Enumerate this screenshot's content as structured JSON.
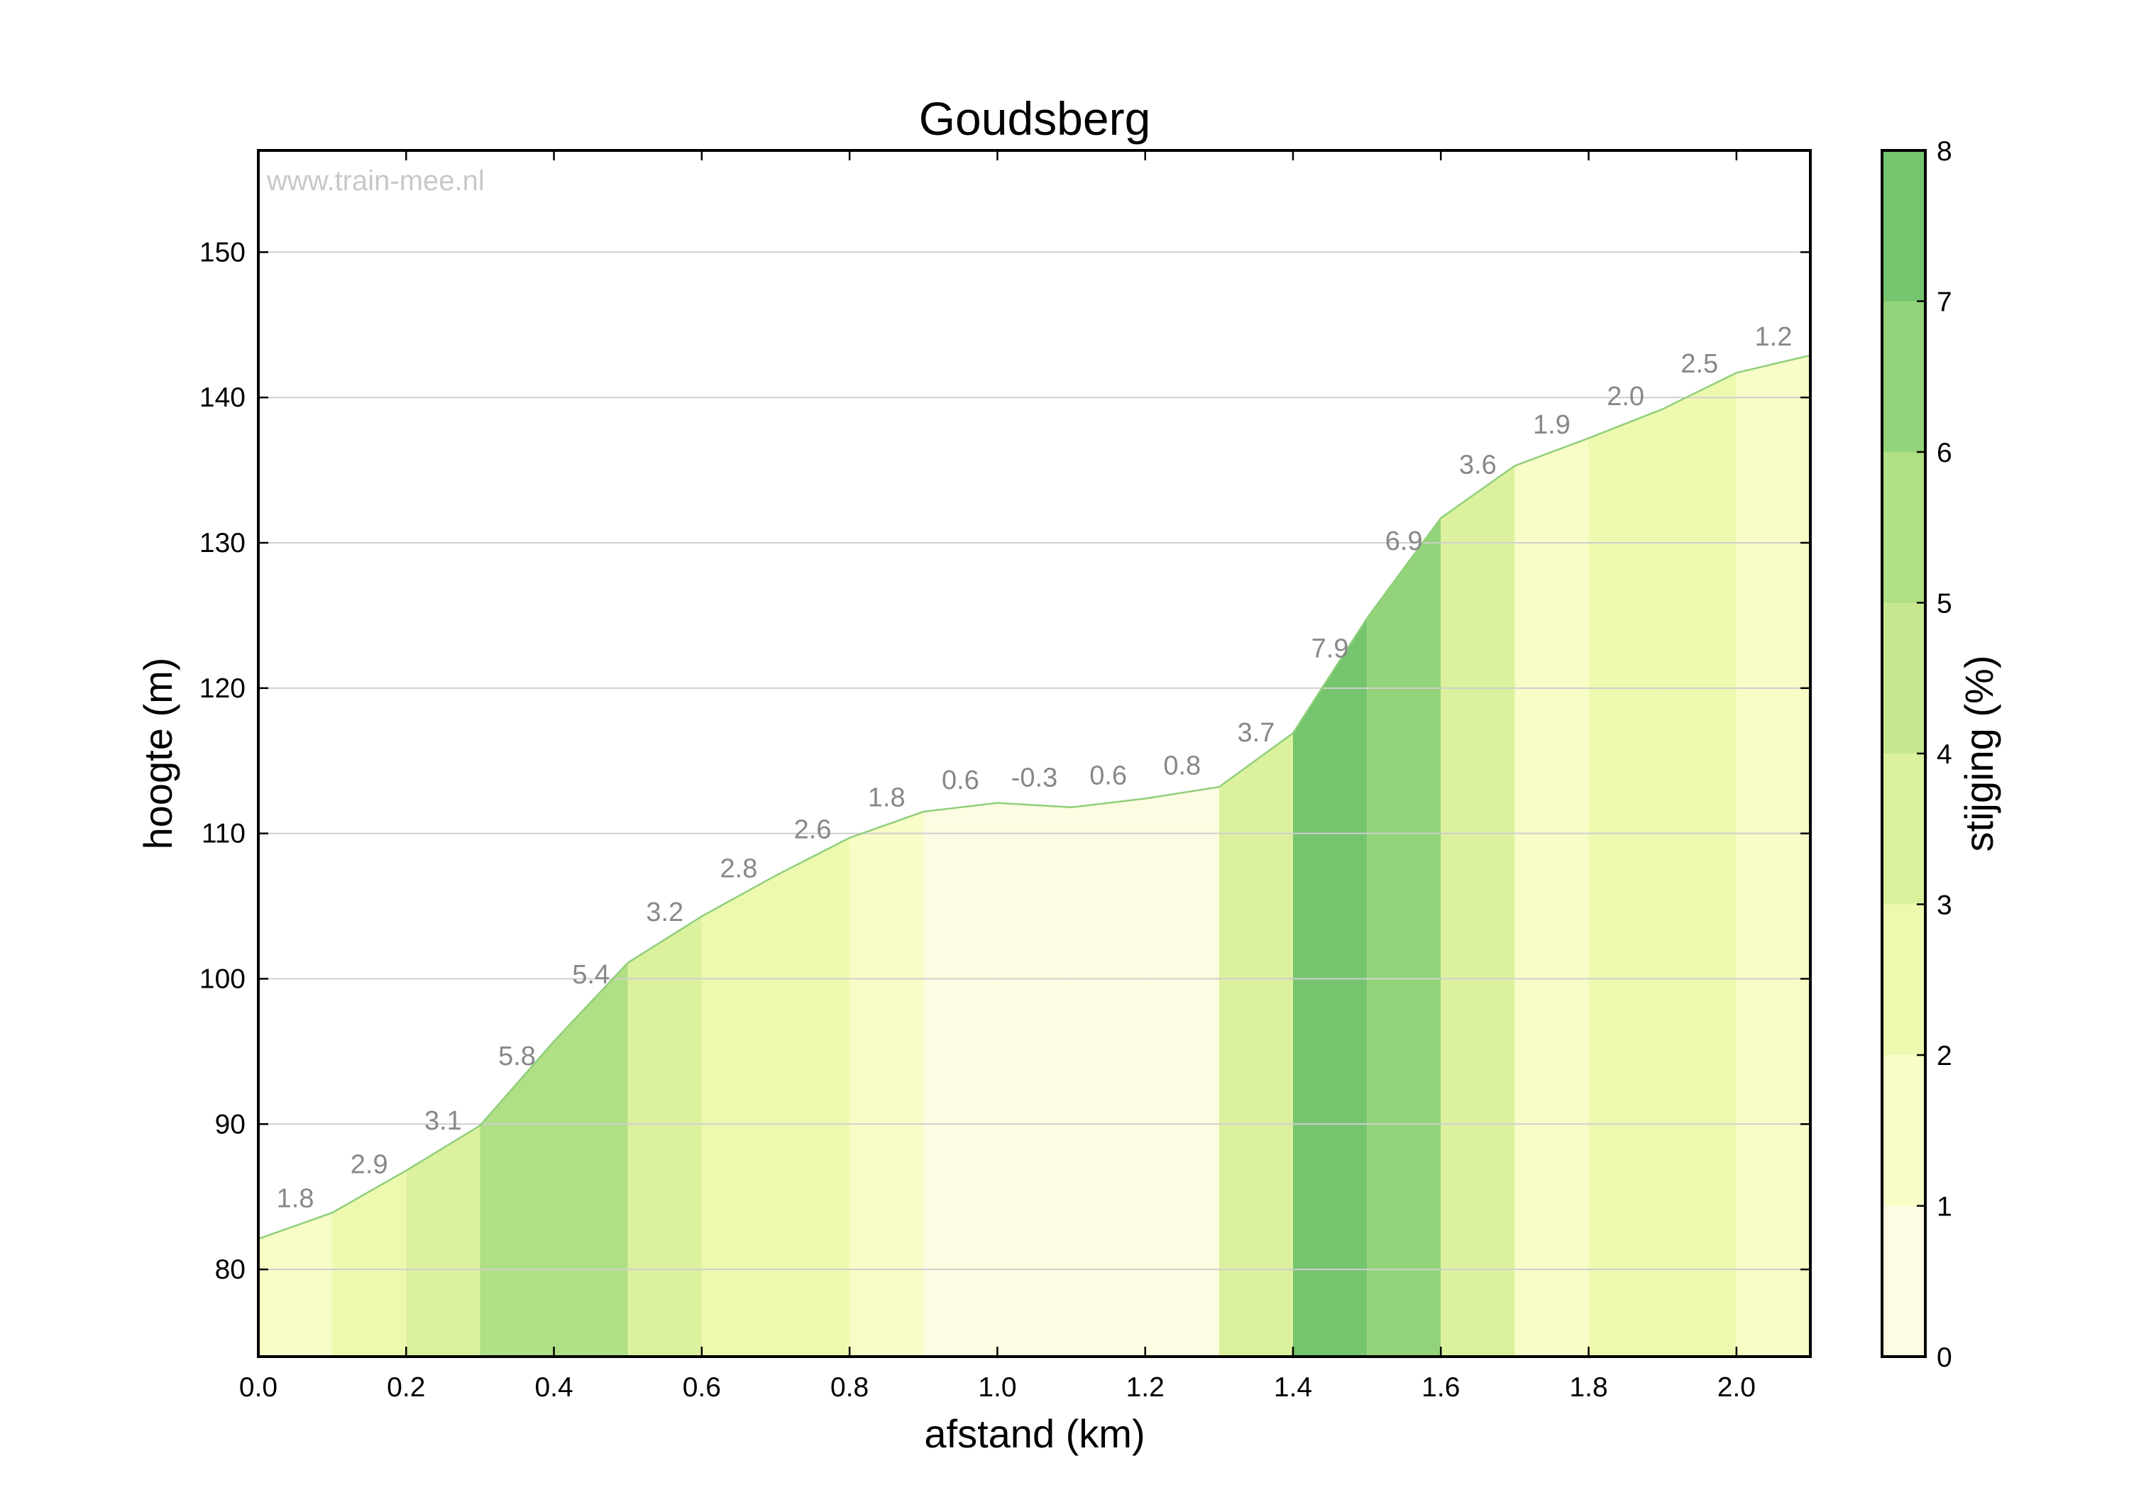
{
  "chart_data": {
    "type": "area",
    "title": "Goudsberg",
    "xlabel": "afstand (km)",
    "ylabel": "hoogte (m)",
    "watermark": "www.train-mee.nl",
    "xlim": [
      0.0,
      2.1
    ],
    "ylim": [
      74,
      157
    ],
    "x_ticks": [
      0.0,
      0.2,
      0.4,
      0.6,
      0.8,
      1.0,
      1.2,
      1.4,
      1.6,
      1.8,
      2.0
    ],
    "x_tick_labels": [
      "0.0",
      "0.2",
      "0.4",
      "0.6",
      "0.8",
      "1.0",
      "1.2",
      "1.4",
      "1.6",
      "1.8",
      "2.0"
    ],
    "y_ticks": [
      80,
      90,
      100,
      110,
      120,
      130,
      140,
      150
    ],
    "y_tick_labels": [
      "80",
      "90",
      "100",
      "110",
      "120",
      "130",
      "140",
      "150"
    ],
    "grid": "horizontal",
    "x": [
      0.0,
      0.1,
      0.2,
      0.3,
      0.4,
      0.5,
      0.6,
      0.7,
      0.8,
      0.9,
      1.0,
      1.1,
      1.2,
      1.3,
      1.4,
      1.5,
      1.6,
      1.7,
      1.8,
      1.9,
      2.0,
      2.1
    ],
    "elevation": [
      82.1,
      83.9,
      86.8,
      89.9,
      95.7,
      101.1,
      104.3,
      107.1,
      109.7,
      111.5,
      112.1,
      111.8,
      112.4,
      113.2,
      116.9,
      124.8,
      131.7,
      135.3,
      137.2,
      139.2,
      141.7,
      142.9
    ],
    "segments": {
      "grades": [
        1.8,
        2.9,
        3.1,
        5.8,
        5.4,
        3.2,
        2.8,
        2.6,
        1.8,
        0.6,
        -0.3,
        0.6,
        0.8,
        3.7,
        7.9,
        6.9,
        3.6,
        1.9,
        2.0,
        2.5,
        1.2
      ],
      "grade_labels": [
        "1.8",
        "2.9",
        "3.1",
        "5.8",
        "5.4",
        "3.2",
        "2.8",
        "2.6",
        "1.8",
        "0.6",
        "-0.3",
        "0.6",
        "0.8",
        "3.7",
        "7.9",
        "6.9",
        "3.6",
        "1.9",
        "2.0",
        "2.5",
        "1.2"
      ]
    },
    "colorbar": {
      "label": "stijging (%)",
      "range": [
        0,
        8
      ],
      "ticks": [
        0,
        1,
        2,
        3,
        4,
        5,
        6,
        7,
        8
      ],
      "tick_labels": [
        "0",
        "1",
        "2",
        "3",
        "4",
        "5",
        "6",
        "7",
        "8"
      ],
      "band_colors": [
        "#fdfbe1",
        "#f8fcc6",
        "#eef9b0",
        "#dcf19e",
        "#c7e88f",
        "#b0df85",
        "#93d37a",
        "#75c56f"
      ]
    },
    "colors": {
      "line": "#8fcf7a",
      "grid": "#cfcfcf",
      "grade_text": "#888888",
      "watermark": "#c8c8c8"
    }
  }
}
